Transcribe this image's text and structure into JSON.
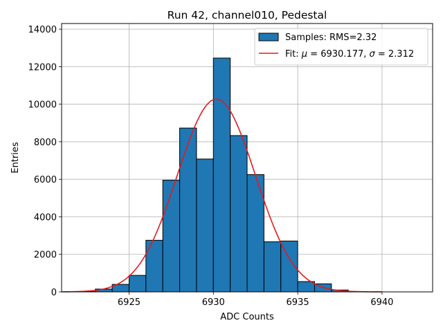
{
  "chart_data": {
    "type": "bar",
    "title": "Run 42, channel010, Pedestal",
    "xlabel": "ADC Counts",
    "ylabel": "Entries",
    "xlim": [
      6921,
      6943
    ],
    "ylim": [
      0,
      14300
    ],
    "xticks": [
      6925,
      6930,
      6935,
      6940
    ],
    "yticks": [
      0,
      2000,
      4000,
      6000,
      8000,
      10000,
      12000,
      14000
    ],
    "grid": true,
    "legend_position": "top-right",
    "bin_width": 1,
    "bins": [
      {
        "x0": 6922,
        "value": 20
      },
      {
        "x0": 6923,
        "value": 150
      },
      {
        "x0": 6924,
        "value": 400
      },
      {
        "x0": 6925,
        "value": 880
      },
      {
        "x0": 6926,
        "value": 2750
      },
      {
        "x0": 6927,
        "value": 5950
      },
      {
        "x0": 6928,
        "value": 8730
      },
      {
        "x0": 6929,
        "value": 7080
      },
      {
        "x0": 6930,
        "value": 12460
      },
      {
        "x0": 6931,
        "value": 8330
      },
      {
        "x0": 6932,
        "value": 6250
      },
      {
        "x0": 6933,
        "value": 2670
      },
      {
        "x0": 6934,
        "value": 2710
      },
      {
        "x0": 6935,
        "value": 550
      },
      {
        "x0": 6936,
        "value": 430
      },
      {
        "x0": 6937,
        "value": 100
      },
      {
        "x0": 6938,
        "value": 20
      }
    ],
    "fit": {
      "mu": 6930.177,
      "sigma": 2.312,
      "amplitude": 10270,
      "x_range": [
        6921,
        6940
      ]
    },
    "legend": {
      "hist_label": "Samples: RMS=2.32",
      "fit_prefix": "Fit: ",
      "mu_symbol": "μ",
      "mu_text": " = 6930.177, ",
      "sigma_symbol": "σ",
      "sigma_text": " = 2.312"
    },
    "colors": {
      "bar_fill": "#1f77b4",
      "bar_edge": "#000000",
      "fit_line": "#e41a1c",
      "grid": "#b0b0b0"
    }
  }
}
